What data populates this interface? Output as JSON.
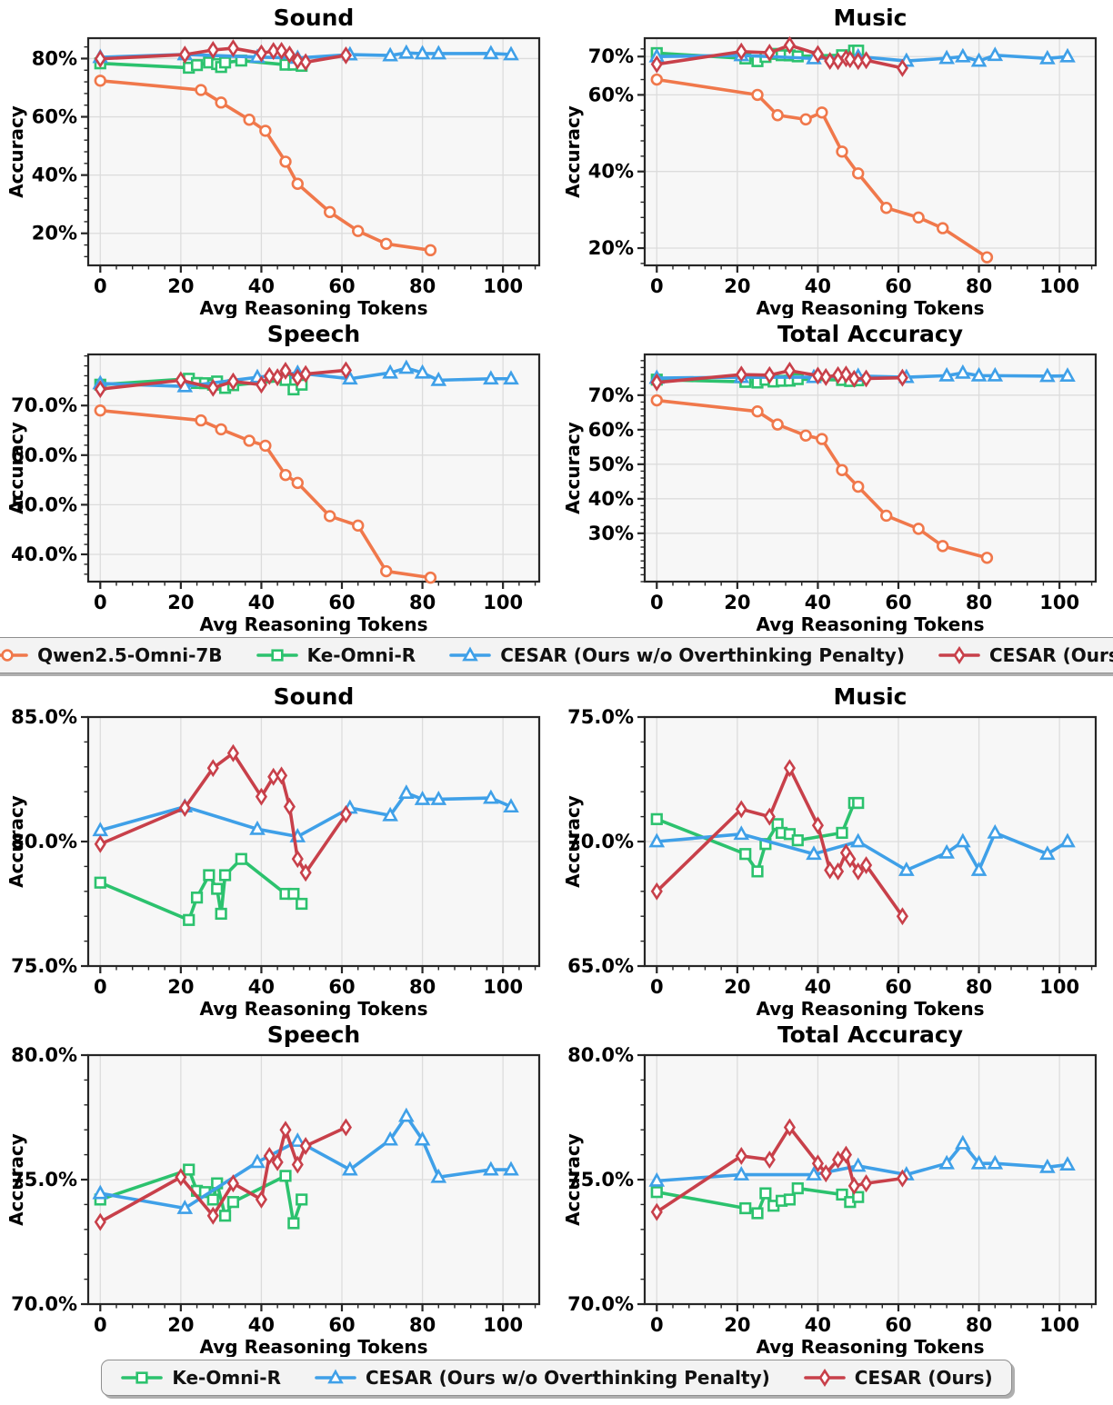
{
  "style": {
    "plot_bg": "#f7f7f7",
    "grid_color": "#dcdcdc",
    "spine_color": "#262626",
    "legend_bg": "#f3f3f3",
    "legend_border": "#8f8f8f"
  },
  "legend_top": {
    "items": [
      "qwen",
      "keomni",
      "cesar_wo",
      "cesar"
    ]
  },
  "legend_bottom": {
    "items": [
      "keomni",
      "cesar_wo",
      "cesar"
    ]
  },
  "chart_data": {
    "type": "line",
    "xlabel": "Avg Reasoning Tokens",
    "ylabel": "Accuracy",
    "xlim": [
      -3,
      109
    ],
    "xticks": [
      0,
      20,
      40,
      60,
      80,
      100
    ],
    "grid": true,
    "models": {
      "qwen": {
        "label": "Qwen2.5-Omni-7B",
        "color": "#F0784B",
        "marker": "circle"
      },
      "keomni": {
        "label": "Ke-Omni-R",
        "color": "#2CC26E",
        "marker": "square"
      },
      "cesar_wo": {
        "label": "CESAR (Ours w/o Overthinking Penalty)",
        "color": "#3FA0E8",
        "marker": "triangle"
      },
      "cesar": {
        "label": "CESAR (Ours)",
        "color": "#C8404A",
        "marker": "diamond"
      }
    },
    "panels": {
      "sound": {
        "series": {
          "qwen": [
            [
              0,
              72.4
            ],
            [
              25,
              69.2
            ],
            [
              30,
              64.9
            ],
            [
              37,
              59.0
            ],
            [
              41,
              55.2
            ],
            [
              46,
              44.6
            ],
            [
              49,
              37.0
            ],
            [
              57,
              27.3
            ],
            [
              64,
              20.8
            ],
            [
              71,
              16.4
            ],
            [
              82,
              14.2
            ]
          ],
          "keomni": [
            [
              0,
              78.35
            ],
            [
              22,
              76.85
            ],
            [
              24,
              77.75
            ],
            [
              27,
              78.65
            ],
            [
              29,
              78.1
            ],
            [
              30,
              77.1
            ],
            [
              31,
              78.65
            ],
            [
              35,
              79.3
            ],
            [
              46,
              77.9
            ],
            [
              48,
              77.9
            ],
            [
              50,
              77.5
            ]
          ],
          "cesar_wo": [
            [
              0,
              80.45
            ],
            [
              21,
              81.4
            ],
            [
              39,
              80.5
            ],
            [
              49,
              80.2
            ],
            [
              62,
              81.35
            ],
            [
              72,
              81.05
            ],
            [
              76,
              81.95
            ],
            [
              80,
              81.7
            ],
            [
              84,
              81.7
            ],
            [
              97,
              81.75
            ],
            [
              102,
              81.4
            ]
          ],
          "cesar": [
            [
              0,
              79.9
            ],
            [
              21,
              81.35
            ],
            [
              28,
              82.95
            ],
            [
              33,
              83.55
            ],
            [
              40,
              81.8
            ],
            [
              43,
              82.6
            ],
            [
              45,
              82.65
            ],
            [
              47,
              81.4
            ],
            [
              49,
              79.3
            ],
            [
              51,
              78.75
            ],
            [
              61,
              81.1
            ]
          ]
        }
      },
      "music": {
        "series": {
          "qwen": [
            [
              0,
              64.0
            ],
            [
              25,
              60.0
            ],
            [
              30,
              54.7
            ],
            [
              37,
              53.6
            ],
            [
              41,
              55.4
            ],
            [
              46,
              45.2
            ],
            [
              50,
              39.5
            ],
            [
              57,
              30.5
            ],
            [
              65,
              28.0
            ],
            [
              71,
              25.2
            ],
            [
              82,
              17.6
            ]
          ],
          "keomni": [
            [
              0,
              70.9
            ],
            [
              22,
              69.5
            ],
            [
              25,
              68.8
            ],
            [
              27,
              69.9
            ],
            [
              30,
              70.7
            ],
            [
              31,
              70.35
            ],
            [
              33,
              70.3
            ],
            [
              35,
              70.05
            ],
            [
              46,
              70.35
            ],
            [
              49,
              71.55
            ],
            [
              50,
              71.55
            ]
          ],
          "cesar_wo": [
            [
              0,
              70.0
            ],
            [
              21,
              70.3
            ],
            [
              39,
              69.5
            ],
            [
              50,
              70.0
            ],
            [
              62,
              68.85
            ],
            [
              72,
              69.55
            ],
            [
              76,
              70.0
            ],
            [
              80,
              68.85
            ],
            [
              84,
              70.35
            ],
            [
              97,
              69.5
            ],
            [
              102,
              70.0
            ]
          ],
          "cesar": [
            [
              0,
              68.0
            ],
            [
              21,
              71.3
            ],
            [
              28,
              71.0
            ],
            [
              33,
              72.95
            ],
            [
              40,
              70.65
            ],
            [
              43,
              68.85
            ],
            [
              45,
              68.8
            ],
            [
              47,
              69.55
            ],
            [
              48,
              69.3
            ],
            [
              50,
              68.8
            ],
            [
              52,
              69.05
            ],
            [
              61,
              67.0
            ]
          ]
        }
      },
      "speech": {
        "series": {
          "qwen": [
            [
              0,
              69.0
            ],
            [
              25,
              67.0
            ],
            [
              30,
              65.2
            ],
            [
              37,
              62.9
            ],
            [
              41,
              61.9
            ],
            [
              46,
              56.0
            ],
            [
              49,
              54.4
            ],
            [
              57,
              47.7
            ],
            [
              64,
              45.8
            ],
            [
              71,
              36.6
            ],
            [
              82,
              35.3
            ]
          ],
          "keomni": [
            [
              0,
              74.2
            ],
            [
              22,
              75.4
            ],
            [
              24,
              74.55
            ],
            [
              26,
              74.5
            ],
            [
              28,
              74.2
            ],
            [
              29,
              74.85
            ],
            [
              31,
              73.55
            ],
            [
              33,
              74.1
            ],
            [
              46,
              75.15
            ],
            [
              48,
              73.25
            ],
            [
              50,
              74.2
            ]
          ],
          "cesar_wo": [
            [
              0,
              74.45
            ],
            [
              21,
              73.85
            ],
            [
              39,
              75.7
            ],
            [
              49,
              76.55
            ],
            [
              62,
              75.4
            ],
            [
              72,
              76.6
            ],
            [
              76,
              77.55
            ],
            [
              80,
              76.6
            ],
            [
              84,
              75.1
            ],
            [
              97,
              75.4
            ],
            [
              102,
              75.4
            ]
          ],
          "cesar": [
            [
              0,
              73.3
            ],
            [
              20,
              75.1
            ],
            [
              28,
              73.55
            ],
            [
              33,
              74.85
            ],
            [
              40,
              74.2
            ],
            [
              42,
              75.95
            ],
            [
              44,
              75.7
            ],
            [
              46,
              77.0
            ],
            [
              49,
              75.6
            ],
            [
              51,
              76.35
            ],
            [
              61,
              77.1
            ]
          ]
        }
      },
      "total": {
        "series": {
          "qwen": [
            [
              0,
              68.5
            ],
            [
              25,
              65.3
            ],
            [
              30,
              61.5
            ],
            [
              37,
              58.3
            ],
            [
              41,
              57.3
            ],
            [
              46,
              48.3
            ],
            [
              50,
              43.5
            ],
            [
              57,
              35.1
            ],
            [
              65,
              31.3
            ],
            [
              71,
              26.3
            ],
            [
              82,
              22.9
            ]
          ],
          "keomni": [
            [
              0,
              74.5
            ],
            [
              22,
              73.85
            ],
            [
              25,
              73.65
            ],
            [
              27,
              74.45
            ],
            [
              29,
              73.95
            ],
            [
              31,
              74.15
            ],
            [
              33,
              74.2
            ],
            [
              35,
              74.65
            ],
            [
              46,
              74.4
            ],
            [
              48,
              74.1
            ],
            [
              50,
              74.3
            ]
          ],
          "cesar_wo": [
            [
              0,
              74.95
            ],
            [
              21,
              75.2
            ],
            [
              39,
              75.2
            ],
            [
              50,
              75.55
            ],
            [
              62,
              75.2
            ],
            [
              72,
              75.65
            ],
            [
              76,
              76.45
            ],
            [
              80,
              75.65
            ],
            [
              84,
              75.65
            ],
            [
              97,
              75.5
            ],
            [
              102,
              75.6
            ]
          ],
          "cesar": [
            [
              0,
              73.7
            ],
            [
              21,
              75.95
            ],
            [
              28,
              75.8
            ],
            [
              33,
              77.1
            ],
            [
              40,
              75.65
            ],
            [
              42,
              75.25
            ],
            [
              45,
              75.8
            ],
            [
              47,
              76.0
            ],
            [
              49,
              74.75
            ],
            [
              52,
              74.85
            ],
            [
              61,
              75.05
            ]
          ]
        }
      }
    },
    "charts": [
      {
        "panel": "sound",
        "title": "Sound",
        "series": [
          "qwen",
          "keomni",
          "cesar_wo",
          "cesar"
        ],
        "ylim": [
          9,
          87
        ],
        "yticks": [
          20,
          40,
          60,
          80
        ],
        "ytick_format": "int",
        "minor_y": 4
      },
      {
        "panel": "music",
        "title": "Music",
        "series": [
          "qwen",
          "keomni",
          "cesar_wo",
          "cesar"
        ],
        "ylim": [
          15.5,
          74.8
        ],
        "yticks": [
          20,
          40,
          60,
          70
        ],
        "ytick_format": "int",
        "minor_y": 4
      },
      {
        "panel": "speech",
        "title": "Speech",
        "series": [
          "qwen",
          "keomni",
          "cesar_wo",
          "cesar"
        ],
        "ylim": [
          34.5,
          80.3
        ],
        "yticks": [
          40,
          50,
          60,
          70
        ],
        "ytick_format": "dec",
        "minor_y": 2
      },
      {
        "panel": "total",
        "title": "Total Accuracy",
        "series": [
          "qwen",
          "keomni",
          "cesar_wo",
          "cesar"
        ],
        "ylim": [
          16,
          81.8
        ],
        "yticks": [
          30,
          40,
          50,
          60,
          70
        ],
        "ytick_format": "int",
        "minor_y": 2
      },
      {
        "panel": "sound",
        "title": "Sound",
        "series": [
          "keomni",
          "cesar_wo",
          "cesar"
        ],
        "ylim": [
          75,
          85
        ],
        "yticks": [
          75,
          80,
          85
        ],
        "ytick_format": "dec",
        "minor_y": 1
      },
      {
        "panel": "music",
        "title": "Music",
        "series": [
          "keomni",
          "cesar_wo",
          "cesar"
        ],
        "ylim": [
          65,
          75
        ],
        "yticks": [
          65,
          70,
          75
        ],
        "ytick_format": "dec",
        "minor_y": 1
      },
      {
        "panel": "speech",
        "title": "Speech",
        "series": [
          "keomni",
          "cesar_wo",
          "cesar"
        ],
        "ylim": [
          70,
          80
        ],
        "yticks": [
          70,
          75,
          80
        ],
        "ytick_format": "dec",
        "minor_y": 1
      },
      {
        "panel": "total",
        "title": "Total Accuracy",
        "series": [
          "keomni",
          "cesar_wo",
          "cesar"
        ],
        "ylim": [
          70,
          80
        ],
        "yticks": [
          70,
          75,
          80
        ],
        "ytick_format": "dec",
        "minor_y": 1
      }
    ]
  }
}
